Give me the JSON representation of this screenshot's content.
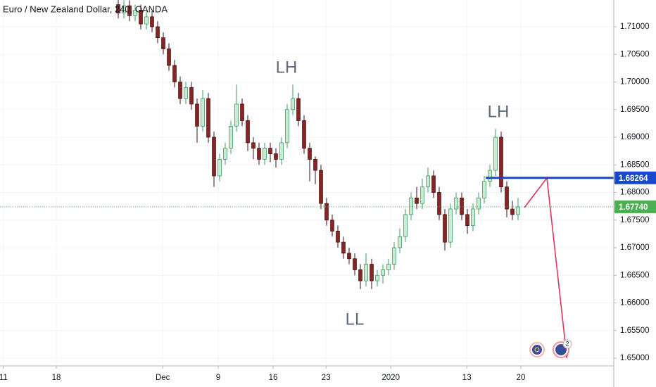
{
  "chart_data": {
    "type": "candlestick",
    "title": "Euro / New Zealand Dollar, 240, OANDA",
    "up_color": "#c8ebd2",
    "up_border": "#3d9a5f",
    "down_color": "#8b2323",
    "open": [
      1.714,
      1.7125,
      1.7138,
      1.712,
      1.713,
      1.7105,
      1.7118,
      1.71,
      1.708,
      1.706,
      1.703,
      1.7,
      1.697,
      1.699,
      1.696,
      1.692,
      1.697,
      1.69,
      1.683,
      1.686,
      1.688,
      1.692,
      1.696,
      1.693,
      1.689,
      1.688,
      1.686,
      1.688,
      1.687,
      1.686,
      1.689,
      1.695,
      1.697,
      1.693,
      1.688,
      1.686,
      1.684,
      1.678,
      1.675,
      1.673,
      1.671,
      1.669,
      1.668,
      1.666,
      1.664,
      1.667,
      1.664,
      1.665,
      1.666,
      1.667,
      1.67,
      1.672,
      1.676,
      1.679,
      1.678,
      1.681,
      1.683,
      1.68,
      1.676,
      1.671,
      1.677,
      1.679,
      1.676,
      1.674,
      1.677,
      1.679,
      1.682,
      1.684,
      1.69,
      1.681,
      1.677,
      1.676
    ],
    "high": [
      1.715,
      1.7148,
      1.7148,
      1.714,
      1.714,
      1.7128,
      1.7128,
      1.711,
      1.709,
      1.707,
      1.704,
      1.701,
      1.7,
      1.7,
      1.697,
      1.6985,
      1.698,
      1.691,
      1.687,
      1.689,
      1.693,
      1.6995,
      1.697,
      1.694,
      1.69,
      1.689,
      1.689,
      1.689,
      1.688,
      1.69,
      1.696,
      1.6995,
      1.698,
      1.694,
      1.689,
      1.6865,
      1.685,
      1.679,
      1.676,
      1.674,
      1.672,
      1.67,
      1.669,
      1.667,
      1.669,
      1.668,
      1.666,
      1.667,
      1.668,
      1.671,
      1.6735,
      1.677,
      1.68,
      1.681,
      1.6825,
      1.6845,
      1.684,
      1.681,
      1.677,
      1.678,
      1.68,
      1.68,
      1.677,
      1.678,
      1.68,
      1.683,
      1.685,
      1.6915,
      1.691,
      1.682,
      1.6785,
      1.679
    ],
    "low": [
      1.7115,
      1.7115,
      1.711,
      1.711,
      1.7095,
      1.7095,
      1.709,
      1.707,
      1.705,
      1.702,
      1.699,
      1.696,
      1.696,
      1.695,
      1.689,
      1.691,
      1.689,
      1.681,
      1.682,
      1.685,
      1.687,
      1.691,
      1.692,
      1.6875,
      1.686,
      1.685,
      1.685,
      1.6855,
      1.6845,
      1.685,
      1.688,
      1.694,
      1.692,
      1.687,
      1.682,
      1.6815,
      1.677,
      1.674,
      1.672,
      1.67,
      1.668,
      1.667,
      1.665,
      1.6625,
      1.663,
      1.6625,
      1.663,
      1.6635,
      1.665,
      1.666,
      1.669,
      1.671,
      1.675,
      1.677,
      1.677,
      1.68,
      1.679,
      1.675,
      1.6695,
      1.67,
      1.676,
      1.675,
      1.6725,
      1.673,
      1.676,
      1.678,
      1.681,
      1.683,
      1.68,
      1.6755,
      1.675,
      1.675
    ],
    "close": [
      1.7125,
      1.7138,
      1.712,
      1.713,
      1.7105,
      1.7118,
      1.71,
      1.708,
      1.706,
      1.703,
      1.7,
      1.697,
      1.699,
      1.696,
      1.692,
      1.697,
      1.69,
      1.683,
      1.686,
      1.688,
      1.692,
      1.696,
      1.693,
      1.689,
      1.688,
      1.686,
      1.688,
      1.687,
      1.686,
      1.689,
      1.695,
      1.697,
      1.693,
      1.688,
      1.686,
      1.684,
      1.678,
      1.675,
      1.673,
      1.671,
      1.669,
      1.668,
      1.666,
      1.664,
      1.667,
      1.664,
      1.665,
      1.666,
      1.667,
      1.67,
      1.672,
      1.676,
      1.679,
      1.678,
      1.681,
      1.683,
      1.68,
      1.676,
      1.671,
      1.677,
      1.679,
      1.676,
      1.674,
      1.677,
      1.679,
      1.682,
      1.684,
      1.69,
      1.681,
      1.677,
      1.676,
      1.6774
    ],
    "xlim": [
      -21,
      88
    ],
    "xticks": [
      {
        "value": -20.4,
        "label": "11"
      },
      {
        "value": -11,
        "label": "18"
      },
      {
        "value": 7.9,
        "label": "Dec"
      },
      {
        "value": 17.75,
        "label": "9"
      },
      {
        "value": 27.5,
        "label": "16"
      },
      {
        "value": 36.9,
        "label": "23"
      },
      {
        "value": 48.4,
        "label": "2020"
      },
      {
        "value": 61.9,
        "label": "13"
      },
      {
        "value": 71.5,
        "label": "20"
      }
    ],
    "ylim": [
      1.6486,
      1.71484
    ],
    "yticks": [
      {
        "value": 1.65,
        "label": "1.65000"
      },
      {
        "value": 1.655,
        "label": "1.65500"
      },
      {
        "value": 1.66,
        "label": "1.66000"
      },
      {
        "value": 1.665,
        "label": "1.66500"
      },
      {
        "value": 1.67,
        "label": "1.67000"
      },
      {
        "value": 1.675,
        "label": "1.67500"
      },
      {
        "value": 1.68,
        "label": "1.68000"
      },
      {
        "value": 1.685,
        "label": "1.68500"
      },
      {
        "value": 1.69,
        "label": "1.69000"
      },
      {
        "value": 1.695,
        "label": "1.69500"
      },
      {
        "value": 1.7,
        "label": "1.70000"
      },
      {
        "value": 1.705,
        "label": "1.70500"
      },
      {
        "value": 1.71,
        "label": "1.71000"
      }
    ],
    "grid": true,
    "levels": [
      {
        "value": 1.68264,
        "color": "#1848cc"
      },
      {
        "value": {
          "value": 1.6774,
          "label": "1.67740"
        },
        "color": "#4caf50"
      }
    ],
    "annotations": [
      "LH",
      "LH",
      "LL"
    ],
    "event_badge": "2"
  }
}
